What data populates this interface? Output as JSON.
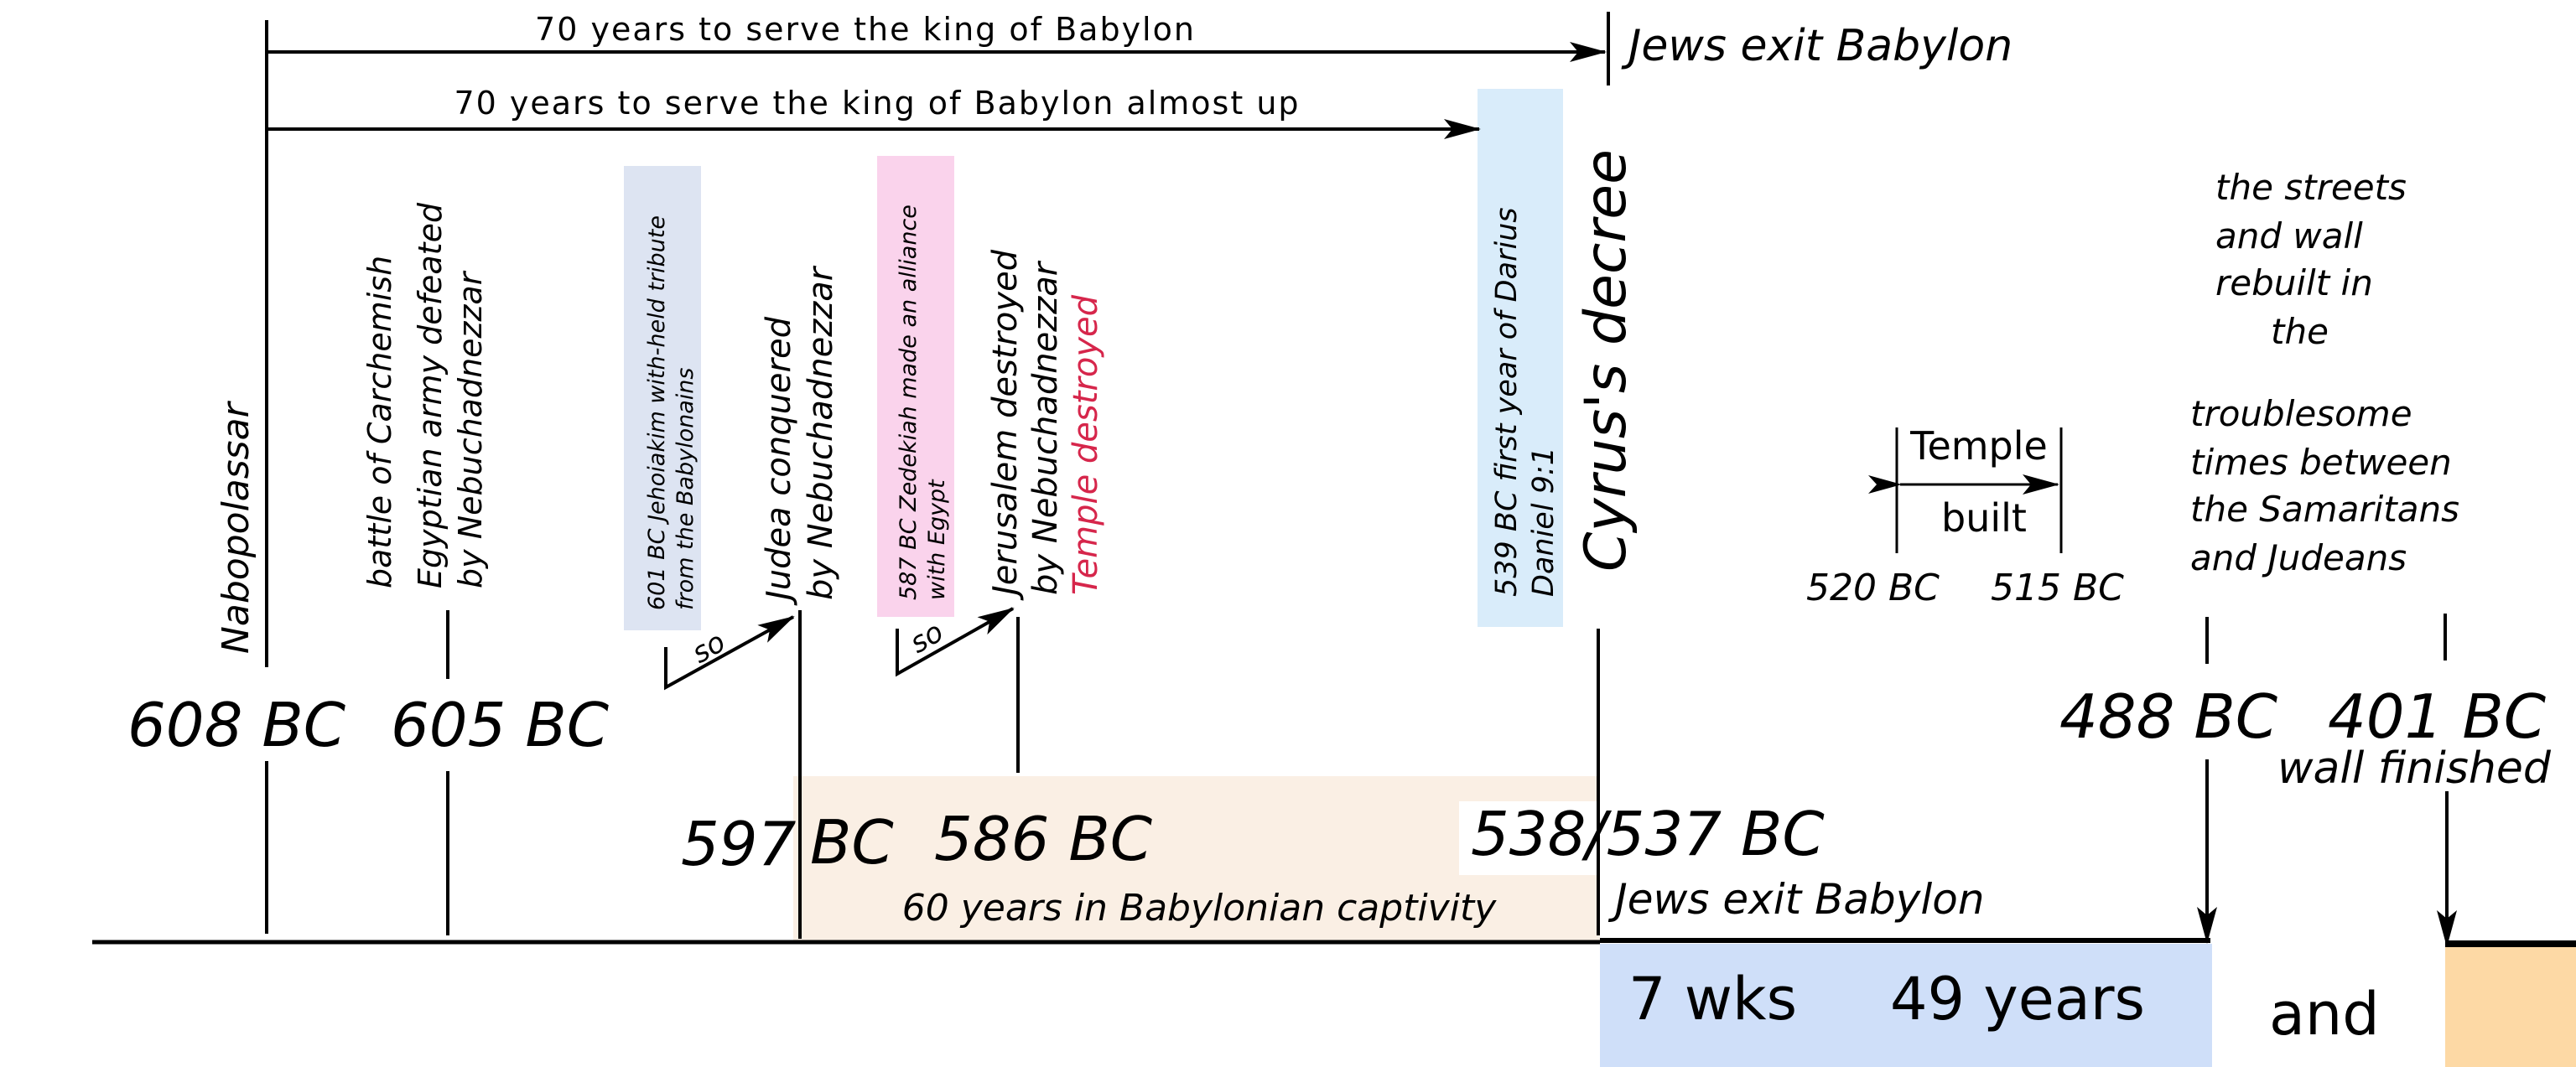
{
  "arrows": {
    "serve_full": "70 years to serve the king of Babylon",
    "serve_almost": "70 years to serve the king of Babylon almost up"
  },
  "top_right_label": "Jews exit Babylon",
  "events": {
    "nabopolassar": "Nabopolassar",
    "carchemish": [
      "battle of Carchemish",
      "Egyptian army defeated",
      "by Nebuchadnezzar"
    ],
    "jehoiakim": [
      "601 BC Jehoiakim with-held tribute",
      "from the Babylonains"
    ],
    "so": "so",
    "judea": [
      "Judea conquered",
      "by Nebuchadnezzar"
    ],
    "zedekiah": [
      "587 BC Zedekiah made an alliance",
      "with  Egypt"
    ],
    "jerusalem": [
      "Jerusalem destroyed",
      "by Nebuchadnezzar"
    ],
    "temple_destroyed": "Temple destroyed",
    "darius": [
      "539 BC first year of Darius",
      "Daniel 9:1"
    ],
    "cyrus": "Cyrus's decree",
    "temple_built": [
      "Temple",
      "built"
    ],
    "streets_wall": [
      "the streets",
      "and wall",
      "rebuilt in",
      "the"
    ],
    "troublesome": [
      "troublesome",
      "times between",
      "the Samaritans",
      "and Judeans"
    ],
    "wall_finished": "wall finished",
    "jews_exit_lower": "Jews exit Babylon"
  },
  "dates": {
    "d608": "608 BC",
    "d605": "605 BC",
    "d597a": "597",
    "d597b": "BC",
    "d586": "586 BC",
    "d538": "538/537 BC",
    "d520": "520 BC",
    "d515": "515 BC",
    "d488": "488 BC",
    "d401": "401 BC"
  },
  "captivity": "60 years in Babylonian captivity",
  "bottom": {
    "wks": "7 wks",
    "years": "49 years",
    "and": "and"
  },
  "colors": {
    "ink": "#000000",
    "captivity_fill": "#faefe4",
    "jehoiakim_fill": "#dde4f2",
    "zedekiah_fill": "#fad3ec",
    "darius_fill": "#d9ecfa",
    "weeks_fill": "#cfdff9",
    "end_fill": "#fdd9a5",
    "temple_destroyed": "#d6264b"
  }
}
